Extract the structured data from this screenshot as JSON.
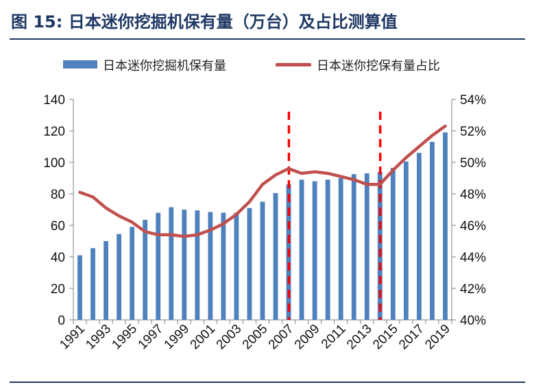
{
  "header": {
    "title": "图 15:  日本迷你挖掘机保有量（万台）及占比测算值"
  },
  "chart_data": {
    "type": "bar",
    "legend": {
      "placement": "top",
      "bar_label": "日本迷你挖掘机保有量",
      "line_label": "日本迷你挖保有量占比"
    },
    "x": [
      1991,
      1992,
      1993,
      1994,
      1995,
      1996,
      1997,
      1998,
      1999,
      2000,
      2001,
      2002,
      2003,
      2004,
      2005,
      2006,
      2007,
      2008,
      2009,
      2010,
      2011,
      2012,
      2013,
      2014,
      2015,
      2016,
      2017,
      2018,
      2019
    ],
    "x_tick_labels": [
      "1991",
      "1993",
      "1995",
      "1997",
      "1999",
      "2001",
      "2003",
      "2005",
      "2007",
      "2009",
      "2011",
      "2013",
      "2015",
      "2017",
      "2019"
    ],
    "series": [
      {
        "name": "日本迷你挖掘机保有量",
        "kind": "bar",
        "axis": "left",
        "color": "#4f81bd",
        "values": [
          41,
          45.5,
          50,
          54.5,
          59,
          63.5,
          68,
          71.5,
          70,
          69.5,
          68.5,
          68,
          68,
          71,
          75,
          80.5,
          86,
          89,
          88,
          89,
          90,
          92.5,
          93,
          94,
          96.5,
          100.5,
          106,
          113,
          119
        ]
      },
      {
        "name": "日本迷你挖保有量占比",
        "kind": "line",
        "axis": "right",
        "color": "#c0504d",
        "values": [
          48.1,
          47.8,
          47.1,
          46.6,
          46.2,
          45.6,
          45.4,
          45.4,
          45.3,
          45.4,
          45.7,
          46.1,
          46.7,
          47.5,
          48.6,
          49.2,
          49.6,
          49.3,
          49.4,
          49.3,
          49.1,
          48.9,
          48.6,
          48.6,
          49.5,
          50.3,
          51.0,
          51.7,
          52.3
        ]
      }
    ],
    "y_left": {
      "min": 0,
      "max": 140,
      "step": 20,
      "ticks": [
        "0",
        "20",
        "40",
        "60",
        "80",
        "100",
        "120",
        "140"
      ]
    },
    "y_right": {
      "min": 40,
      "max": 54,
      "step": 2,
      "ticks": [
        "40%",
        "42%",
        "44%",
        "46%",
        "48%",
        "50%",
        "52%",
        "54%"
      ]
    },
    "vertical_markers": [
      2007,
      2014
    ],
    "marker_color": "#ff0000",
    "grid": false
  }
}
